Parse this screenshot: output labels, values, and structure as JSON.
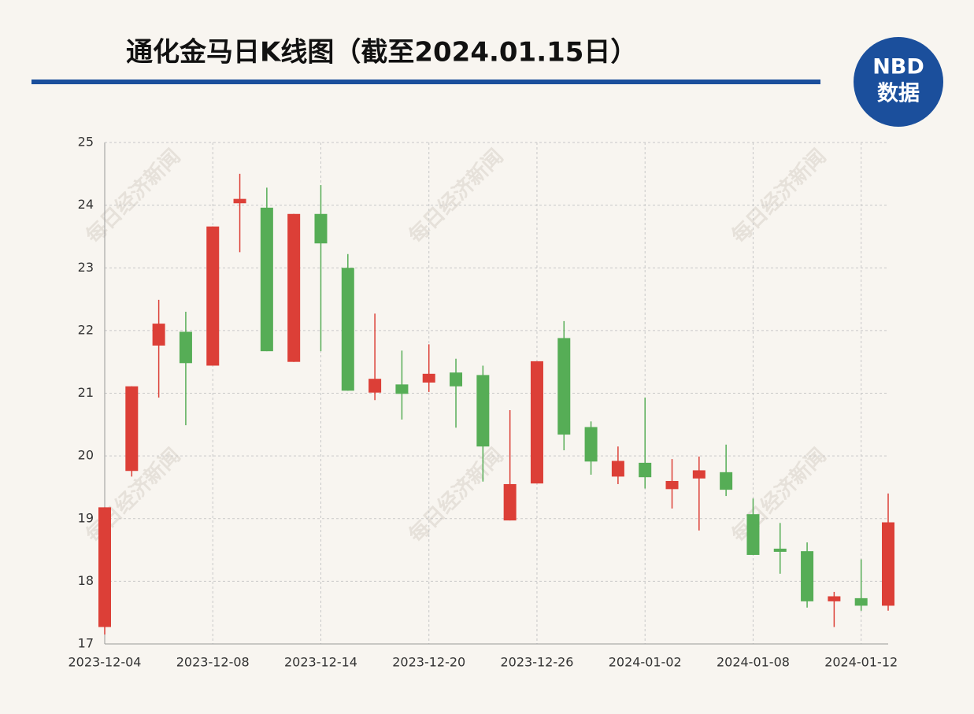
{
  "chart_data": {
    "type": "candlestick",
    "title": "通化金马日K线图（截至2024.01.15日）",
    "categories": [
      "2023-12-04",
      null,
      null,
      null,
      "2023-12-08",
      null,
      null,
      null,
      "2023-12-14",
      null,
      null,
      null,
      "2023-12-20",
      null,
      null,
      null,
      "2023-12-26",
      null,
      null,
      null,
      "2024-01-02",
      null,
      null,
      null,
      "2024-01-08",
      null,
      null,
      null,
      "2024-01-12",
      null
    ],
    "open": [
      17.27,
      19.76,
      21.76,
      21.98,
      21.44,
      24.03,
      23.96,
      21.5,
      23.86,
      23.0,
      21.01,
      21.14,
      21.17,
      21.33,
      21.29,
      18.97,
      19.56,
      21.88,
      20.46,
      19.67,
      19.89,
      19.47,
      19.64,
      19.74,
      19.07,
      18.52,
      18.48,
      17.68,
      17.73,
      17.61
    ],
    "high": [
      19.18,
      21.11,
      22.49,
      22.3,
      23.66,
      24.5,
      24.28,
      23.86,
      24.32,
      23.22,
      22.27,
      21.68,
      21.78,
      21.55,
      21.44,
      20.73,
      21.51,
      22.15,
      20.55,
      20.15,
      20.93,
      19.95,
      19.99,
      20.18,
      19.32,
      18.93,
      18.62,
      17.83,
      18.35,
      19.4
    ],
    "low": [
      17.15,
      19.67,
      20.93,
      20.49,
      21.44,
      23.25,
      21.67,
      21.5,
      21.67,
      21.04,
      20.89,
      20.58,
      21.02,
      20.45,
      19.59,
      18.97,
      19.56,
      20.09,
      19.7,
      19.55,
      19.48,
      19.16,
      18.81,
      19.36,
      18.42,
      18.12,
      17.58,
      17.27,
      17.53,
      17.53
    ],
    "close": [
      19.18,
      21.11,
      22.11,
      21.48,
      23.66,
      24.1,
      21.67,
      23.86,
      23.39,
      21.04,
      21.23,
      20.99,
      21.31,
      21.11,
      20.15,
      19.55,
      21.51,
      20.34,
      19.91,
      19.92,
      19.66,
      19.6,
      19.77,
      19.46,
      18.42,
      18.47,
      17.68,
      17.76,
      17.61,
      18.94
    ],
    "up_color": "#dc3f37",
    "down_color": "#56ad56",
    "ylim": [
      17,
      25
    ],
    "yticks": [
      17,
      18,
      19,
      20,
      21,
      22,
      23,
      24,
      25
    ],
    "grid": true
  },
  "logo": {
    "top": "NBD",
    "bottom": "数据"
  },
  "watermark": "每日经济新闻"
}
